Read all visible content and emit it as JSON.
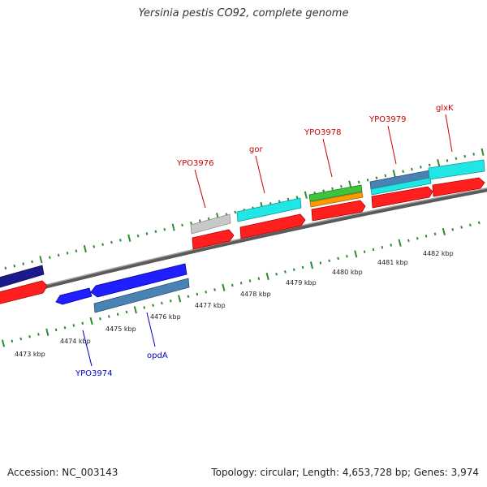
{
  "title": "Yersinia pestis CO92, complete genome",
  "footer": {
    "accession": "Accession: NC_003143",
    "summary": "Topology: circular; Length: 4,653,728 bp; Genes: 3,974"
  },
  "kbp_labels": [
    "4473 kbp",
    "4474 kbp",
    "4475 kbp",
    "4476 kbp",
    "4477 kbp",
    "4478 kbp",
    "4479 kbp",
    "4480 kbp",
    "4481 kbp",
    "4482 kbp"
  ],
  "gene_labels": {
    "YPO3974": "YPO3974",
    "opdA": "opdA",
    "YPO3976": "YPO3976",
    "gor": "gor",
    "YPO3978": "YPO3978",
    "YPO3979": "YPO3979",
    "glxK": "glxK"
  },
  "colors": {
    "backbone": "#7a7a7a",
    "tick": "#2e8b2e",
    "cds": "#ff1f1f",
    "forward_label": "#cc0000",
    "reverse_label": "#0000cc",
    "navy": "#1a1a8c",
    "blue": "#1f1fff",
    "steel": "#4a82b4",
    "grey": "#c8c8c8",
    "cyan": "#22e6e6",
    "green": "#3cc43c",
    "orange": "#ff9900"
  }
}
